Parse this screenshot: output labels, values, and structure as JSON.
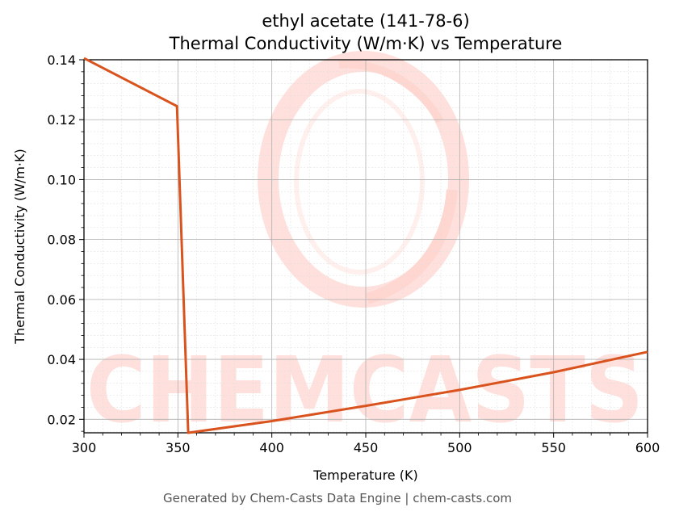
{
  "chart_data": {
    "type": "line",
    "title": "ethyl acetate (141-78-6)",
    "subtitle": "Thermal Conductivity (W/m·K) vs Temperature",
    "xlabel": "Temperature (K)",
    "ylabel": "Thermal Conductivity (W/m·K)",
    "xlim": [
      300,
      600
    ],
    "ylim": [
      0.0155,
      0.14
    ],
    "x_ticks": [
      300,
      350,
      400,
      450,
      500,
      550,
      600
    ],
    "y_ticks": [
      0.02,
      0.04,
      0.06,
      0.08,
      0.1,
      0.12,
      0.14
    ],
    "y_tick_labels": [
      "0.02",
      "0.04",
      "0.06",
      "0.08",
      "0.10",
      "0.12",
      "0.14"
    ],
    "grid": true,
    "series": [
      {
        "color": "#d9531e",
        "x": [
          300,
          349.5,
          355.5,
          400,
          450,
          500,
          550,
          600
        ],
        "y": [
          0.1405,
          0.1245,
          0.0155,
          0.0194,
          0.0245,
          0.0298,
          0.0357,
          0.0425
        ]
      }
    ]
  },
  "watermark": {
    "text": "CHEMCASTS",
    "color": "#ffe0dc"
  },
  "footer": "Generated by Chem-Casts Data Engine | chem-casts.com"
}
